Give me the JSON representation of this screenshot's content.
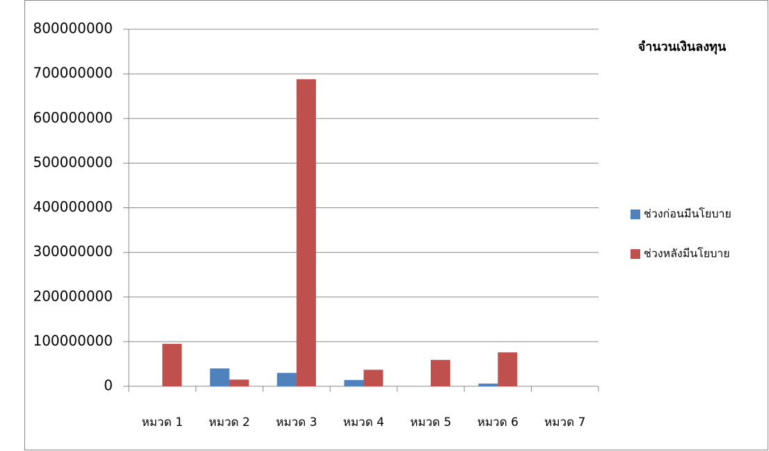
{
  "chart_data": {
    "type": "bar",
    "title": "จำนวนเงินลงทุน",
    "categories": [
      "หมวด 1",
      "หมวด 2",
      "หมวด 3",
      "หมวด 4",
      "หมวด 5",
      "หมวด 6",
      "หมวด 7"
    ],
    "series": [
      {
        "name": "ช่วงก่อนมีนโยบาย",
        "color": "#4f81bd",
        "values": [
          0,
          40000000,
          30000000,
          14000000,
          0,
          6000000,
          0
        ]
      },
      {
        "name": "ช่วงหลังมีนโยบาย",
        "color": "#c0504d",
        "values": [
          95000000,
          15000000,
          688000000,
          37000000,
          59000000,
          76000000,
          0
        ]
      }
    ],
    "ylim": [
      0,
      800000000
    ],
    "yticks": [
      0,
      100000000,
      200000000,
      300000000,
      400000000,
      500000000,
      600000000,
      700000000,
      800000000
    ],
    "grid": true,
    "legend": "right"
  }
}
